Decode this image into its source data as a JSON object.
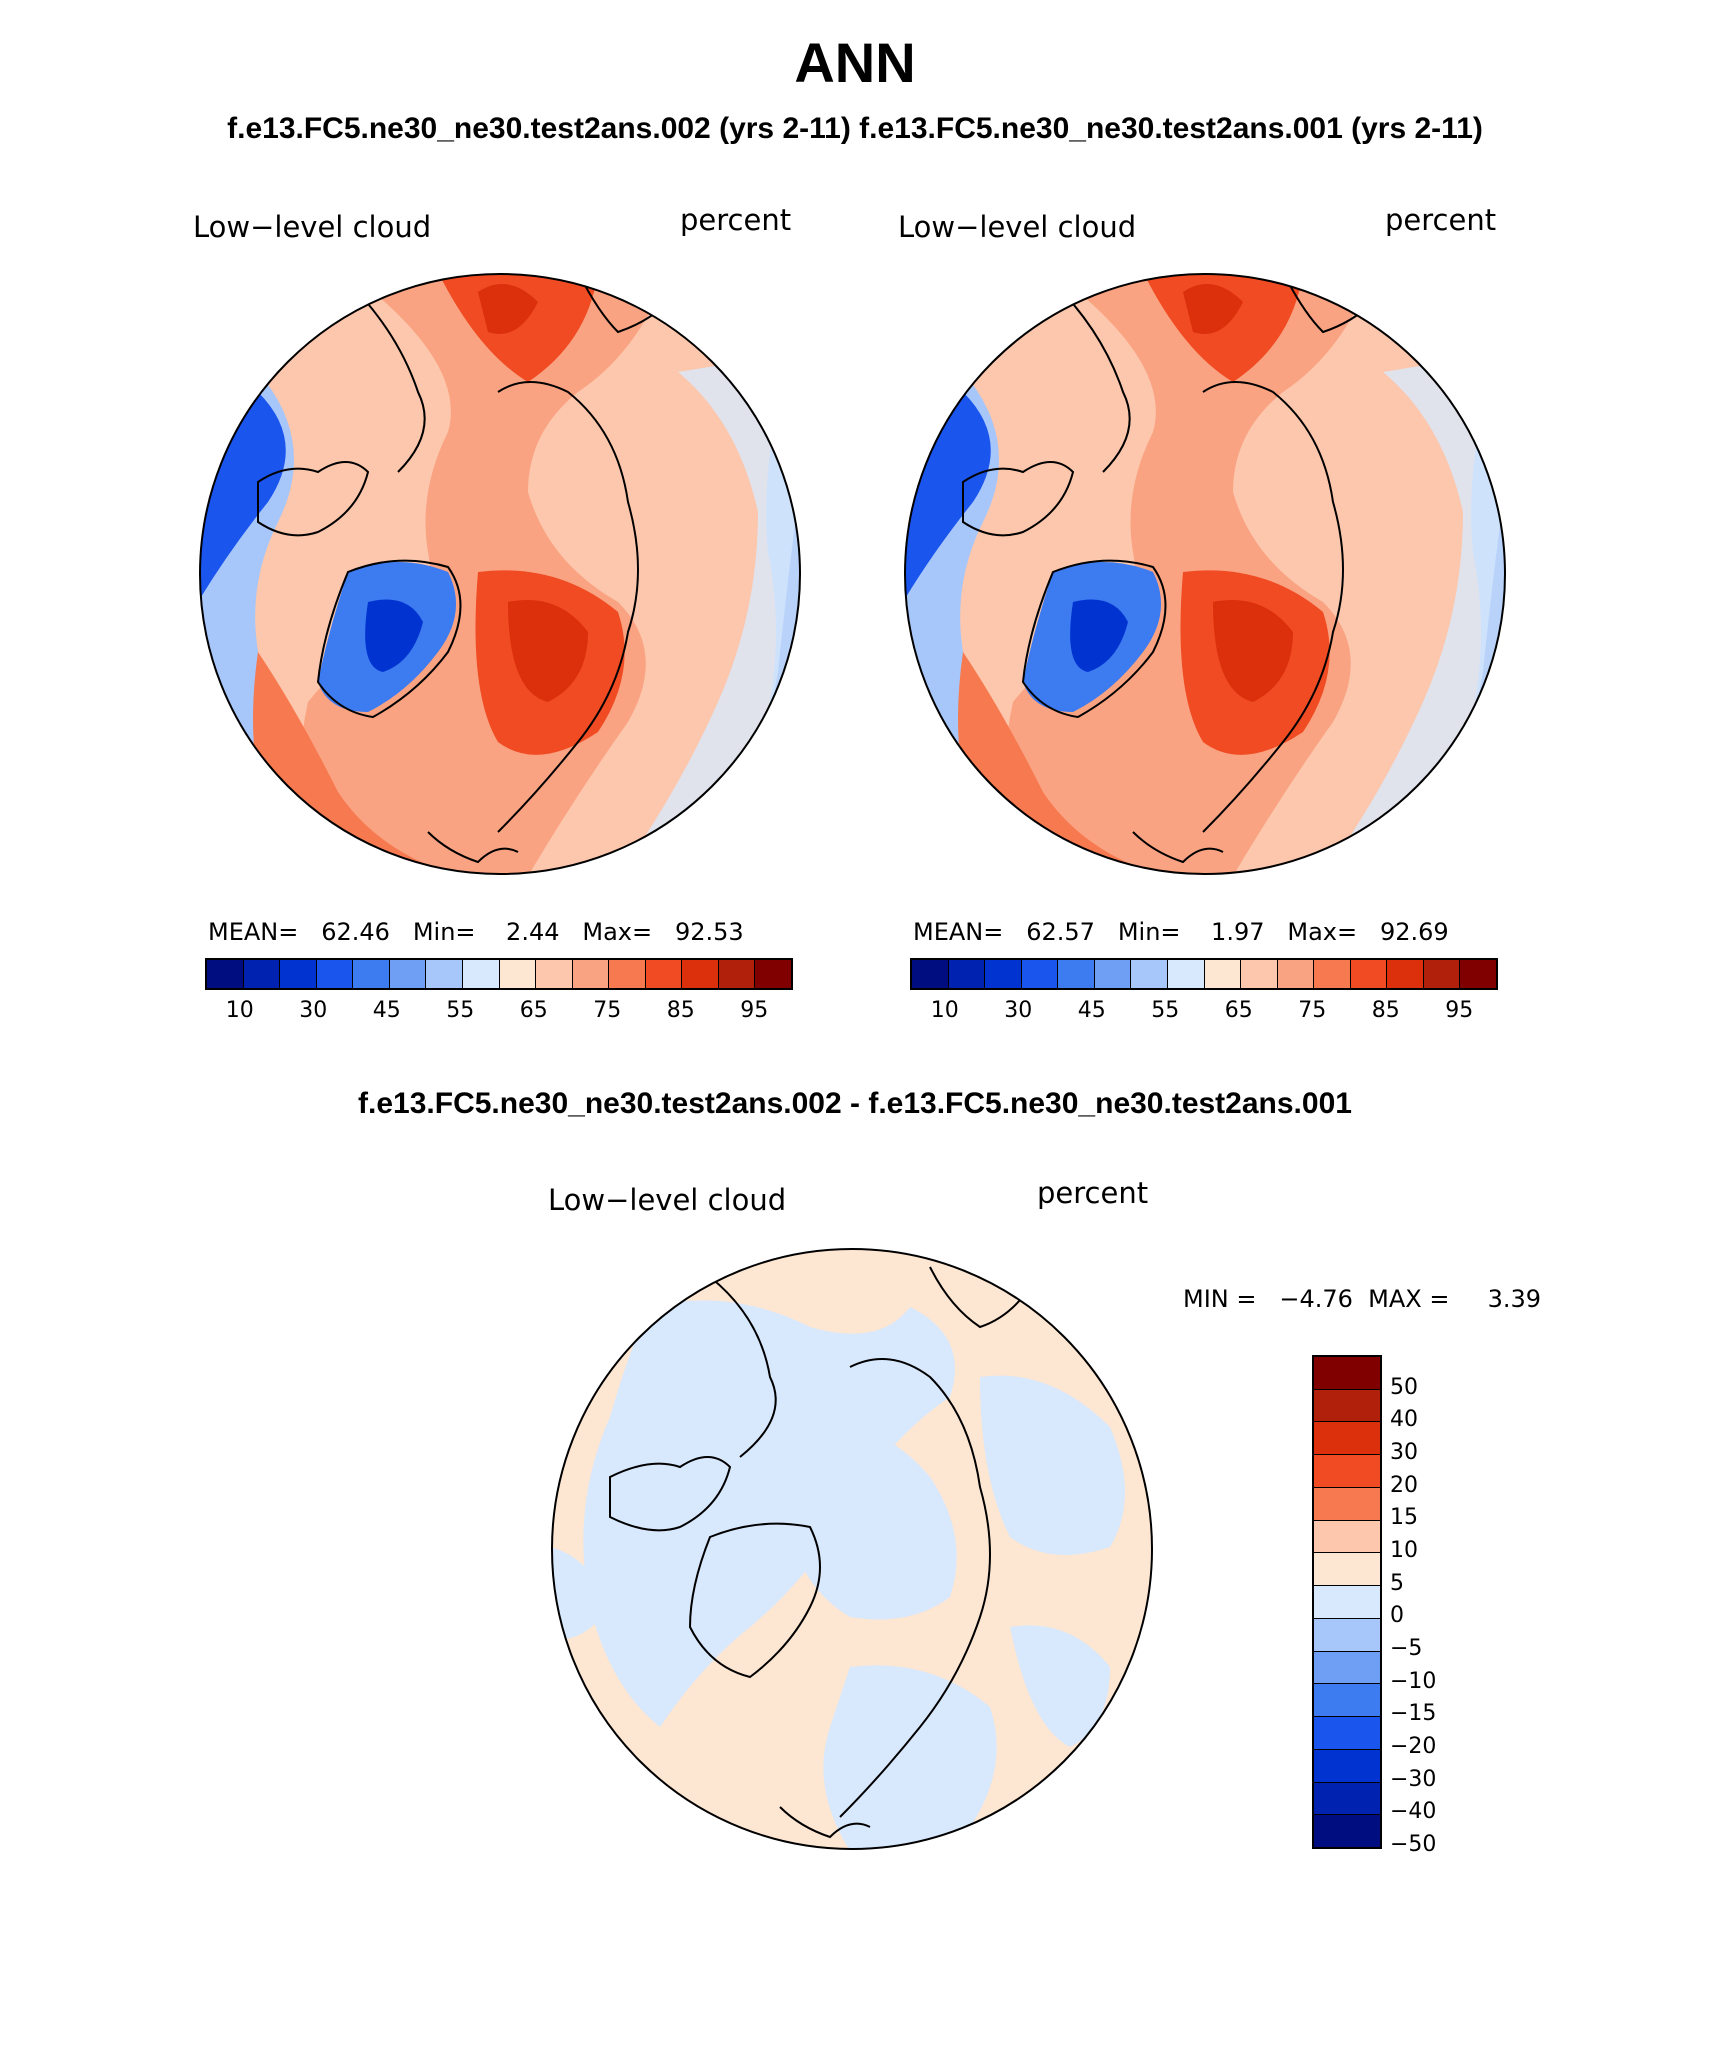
{
  "figure": {
    "title": "ANN",
    "subtitle_top": "f.e13.FC5.ne30_ne30.test2ans.002 (yrs 2-11) f.e13.FC5.ne30_ne30.test2ans.001 (yrs 2-11)",
    "subtitle_diff": "f.e13.FC5.ne30_ne30.test2ans.002 - f.e13.FC5.ne30_ne30.test2ans.001"
  },
  "panels": [
    {
      "variable": "Low−level cloud",
      "units": "percent",
      "stats": "MEAN=   62.46   Min=    2.44   Max=   92.53"
    },
    {
      "variable": "Low−level cloud",
      "units": "percent",
      "stats": "MEAN=   62.57   Min=    1.97   Max=   92.69"
    },
    {
      "variable": "Low−level cloud",
      "units": "percent",
      "stats": "MIN =   −4.76  MAX =     3.39"
    }
  ],
  "colorbar_main": {
    "colors": [
      "#000d80",
      "#0022b0",
      "#0033d0",
      "#1a55ee",
      "#3d7bf0",
      "#6f9ff5",
      "#a7c6fa",
      "#d8e8fd",
      "#fde6d2",
      "#fcc7ac",
      "#faa382",
      "#f7794f",
      "#f04b22",
      "#dc300c",
      "#b0200a",
      "#800000"
    ],
    "tick_labels": [
      "10",
      "30",
      "45",
      "55",
      "65",
      "75",
      "85",
      "95"
    ]
  },
  "colorbar_diff": {
    "colors": [
      "#800000",
      "#b0200a",
      "#dc300c",
      "#f04b22",
      "#f7794f",
      "#fcc7ac",
      "#fde6d2",
      "#d8e8fd",
      "#a7c6fa",
      "#6f9ff5",
      "#3d7bf0",
      "#1a55ee",
      "#0033d0",
      "#0022b0",
      "#000d80"
    ],
    "tick_labels": [
      "50",
      "40",
      "30",
      "20",
      "15",
      "10",
      "5",
      "0",
      "−5",
      "−10",
      "−15",
      "−20",
      "−30",
      "−40",
      "−50"
    ]
  }
}
